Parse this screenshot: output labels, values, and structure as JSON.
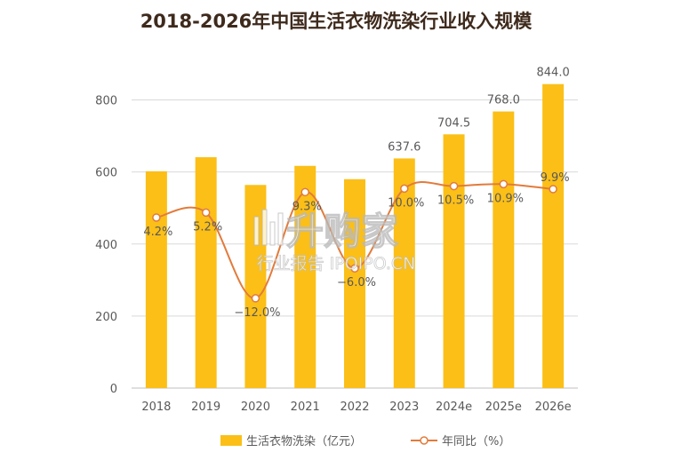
{
  "chart_data": {
    "type": "bar",
    "title": "2018-2026年中国生活衣物洗染行业收入规模",
    "categories": [
      "2018",
      "2019",
      "2020",
      "2021",
      "2022",
      "2023",
      "2024e",
      "2025e",
      "2026e"
    ],
    "series": [
      {
        "name": "生活衣物洗染（亿元）",
        "type": "bar",
        "axis": "left",
        "values": [
          602,
          641,
          564,
          617,
          580,
          637.6,
          704.5,
          768.0,
          844.0
        ],
        "labels": [
          null,
          null,
          null,
          null,
          null,
          "637.6",
          "704.5",
          "768.0",
          "844.0"
        ],
        "color": "#FBBF17"
      },
      {
        "name": "年同比（%）",
        "type": "line",
        "axis": "right",
        "values": [
          4.2,
          5.2,
          -12.0,
          9.3,
          -6.0,
          10.0,
          10.5,
          10.9,
          9.9
        ],
        "labels": [
          "4.2%",
          "5.2%",
          "−12.0%",
          "9.3%",
          "−6.0%",
          "10.0%",
          "10.5%",
          "10.9%",
          "9.9%"
        ],
        "color": "#E27B3B"
      }
    ],
    "yticks": [
      0,
      200,
      400,
      600,
      800
    ],
    "ylim": [
      0,
      900
    ],
    "y2lim": [
      -30,
      35
    ],
    "grid": true,
    "legend": "bottom"
  },
  "colors": {
    "title": "#3E2A1C",
    "grid": "#D9D9D9",
    "axis": "#BFBFBF"
  },
  "watermark": {
    "logo": "升购家",
    "text": "行业报告 IPOIPO.CN"
  }
}
